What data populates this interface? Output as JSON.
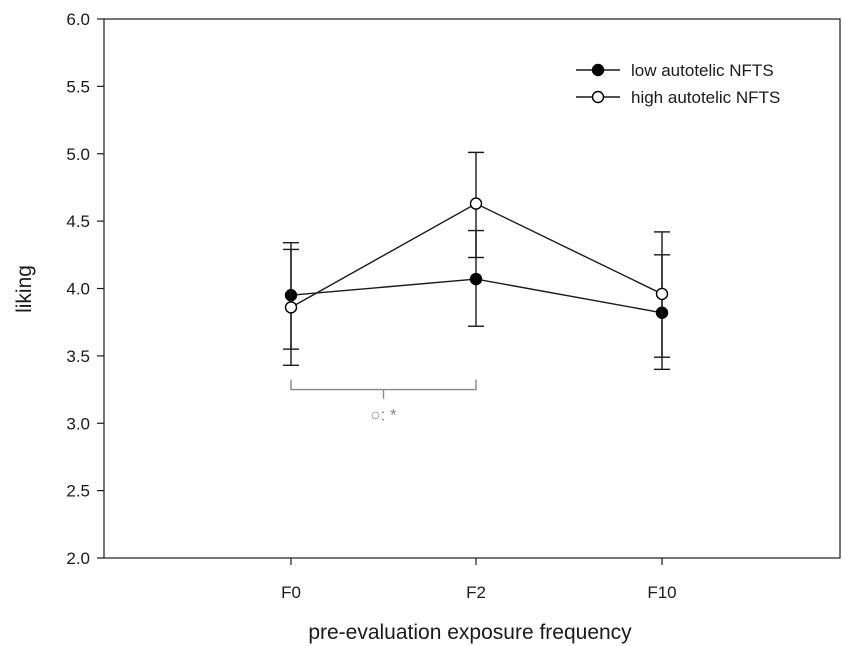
{
  "chart_data": {
    "type": "line",
    "xlabel": "pre-evaluation exposure frequency",
    "ylabel": "liking",
    "categories": [
      "F0",
      "F2",
      "F10"
    ],
    "ylim": [
      2.0,
      6.0
    ],
    "yticks": [
      "2.0",
      "2.5",
      "3.0",
      "3.5",
      "4.0",
      "4.5",
      "5.0",
      "5.5",
      "6.0"
    ],
    "legend_position": "top-right",
    "grid": false,
    "series": [
      {
        "name": "low autotelic NFTS",
        "marker": "filled-circle",
        "values": [
          3.95,
          4.07,
          3.82
        ],
        "error_low": [
          3.55,
          3.72,
          3.4
        ],
        "error_high": [
          4.34,
          4.43,
          4.25
        ]
      },
      {
        "name": "high autotelic NFTS",
        "marker": "open-circle",
        "values": [
          3.86,
          4.63,
          3.96
        ],
        "error_low": [
          3.43,
          4.23,
          3.49
        ],
        "error_high": [
          4.29,
          5.01,
          4.42
        ]
      }
    ],
    "annotations": [
      {
        "text": "○: *",
        "from": "F0",
        "to": "F2",
        "y": 3.25,
        "color": "#888888"
      }
    ]
  }
}
